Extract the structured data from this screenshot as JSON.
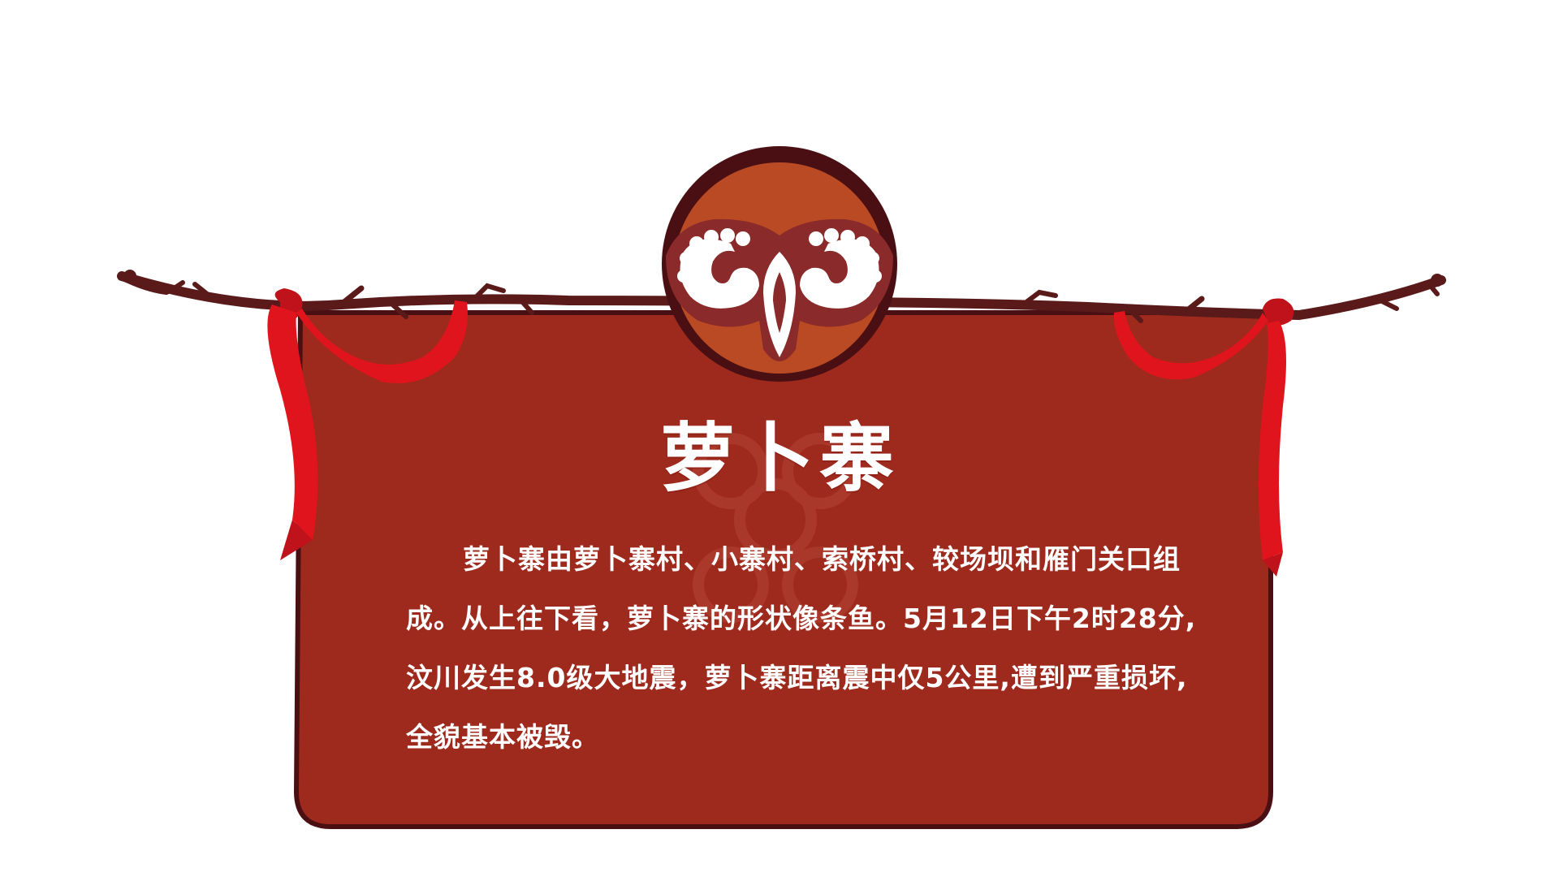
{
  "board": {
    "title": "萝卜寨",
    "description": "萝卜寨由萝卜寨村、小寨村、索桥村、较场坝和雁门关口组成。从上往下看，萝卜寨的形状像条鱼。5月12日下午2时28分,汶川发生8.0级大地震，萝卜寨距离震中仅5公里,遭到严重损坏,全貌基本被毁。"
  },
  "colors": {
    "board_fill": "#9e2a1e",
    "board_outline": "#4a0f12",
    "emblem_fill": "#b94a24",
    "ribbon": "#e0141c",
    "branch": "#5a1a1a"
  },
  "icons": {
    "emblem": "ram-horn-icon",
    "ribbons": "red-ribbon-icon",
    "branch": "tree-branch-icon"
  }
}
